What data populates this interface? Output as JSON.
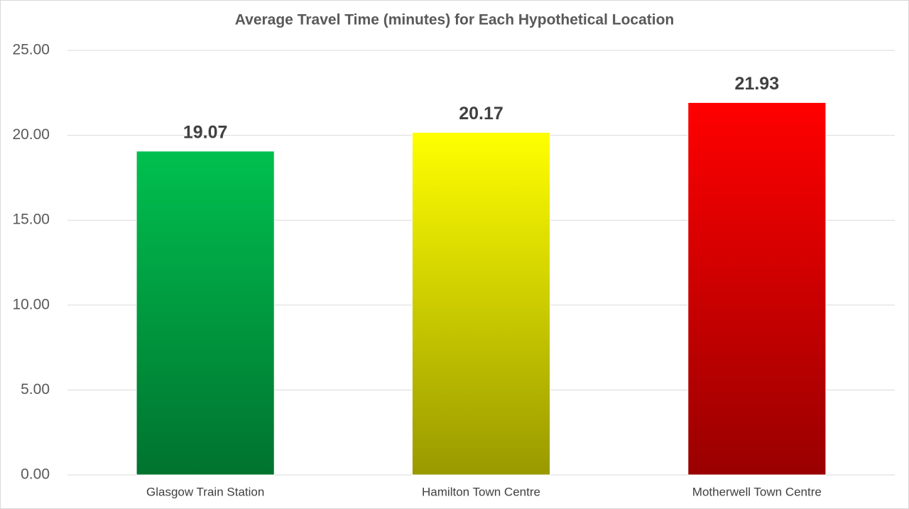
{
  "chart_data": {
    "type": "bar",
    "title": "Average Travel Time (minutes) for Each Hypothetical Location",
    "categories": [
      "Glasgow Train Station",
      "Hamilton Town Centre",
      "Motherwell Town Centre"
    ],
    "values": [
      19.07,
      20.17,
      21.93
    ],
    "colors": [
      "#00c04f",
      "#ffff00",
      "#ff0000"
    ],
    "ylim": [
      0,
      25
    ],
    "yticks": [
      {
        "value": 0,
        "label": "0.00"
      },
      {
        "value": 5,
        "label": "5.00"
      },
      {
        "value": 10,
        "label": "10.00"
      },
      {
        "value": 15,
        "label": "15.00"
      },
      {
        "value": 20,
        "label": "20.00"
      },
      {
        "value": 25,
        "label": "25.00"
      }
    ],
    "grid": true
  }
}
